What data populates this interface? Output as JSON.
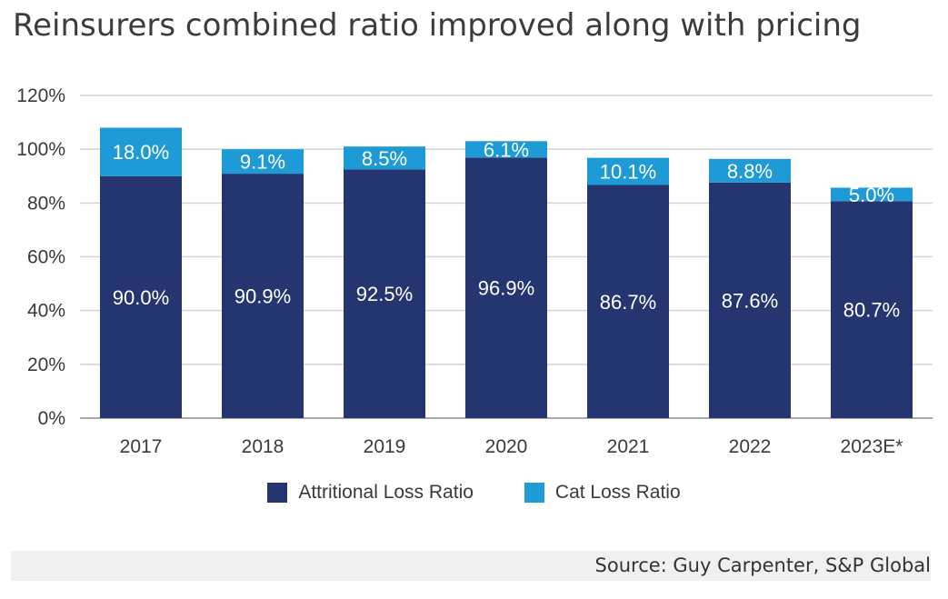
{
  "title": "Reinsurers combined ratio improved along with pricing",
  "source": "Source: Guy Carpenter, S&P Global",
  "colors": {
    "attritional": "#253570",
    "cat": "#1e9ad6",
    "grid": "#d4d4d4"
  },
  "chart_data": {
    "type": "bar",
    "stacked": true,
    "categories": [
      "2017",
      "2018",
      "2019",
      "2020",
      "2021",
      "2022",
      "2023E*"
    ],
    "series": [
      {
        "name": "Attritional Loss Ratio",
        "values": [
          90.0,
          90.9,
          92.5,
          96.9,
          86.7,
          87.6,
          80.7
        ],
        "labels": [
          "90.0%",
          "90.9%",
          "92.5%",
          "96.9%",
          "86.7%",
          "87.6%",
          "80.7%"
        ]
      },
      {
        "name": "Cat Loss Ratio",
        "values": [
          18.0,
          9.1,
          8.5,
          6.1,
          10.1,
          8.8,
          5.0
        ],
        "labels": [
          "18.0%",
          "9.1%",
          "8.5%",
          "6.1%",
          "10.1%",
          "8.8%",
          "5.0%"
        ]
      }
    ],
    "ylim": [
      0,
      120
    ],
    "yticks": [
      "0%",
      "20%",
      "40%",
      "60%",
      "80%",
      "100%",
      "120%"
    ],
    "grid": true,
    "legend": "bottom"
  }
}
